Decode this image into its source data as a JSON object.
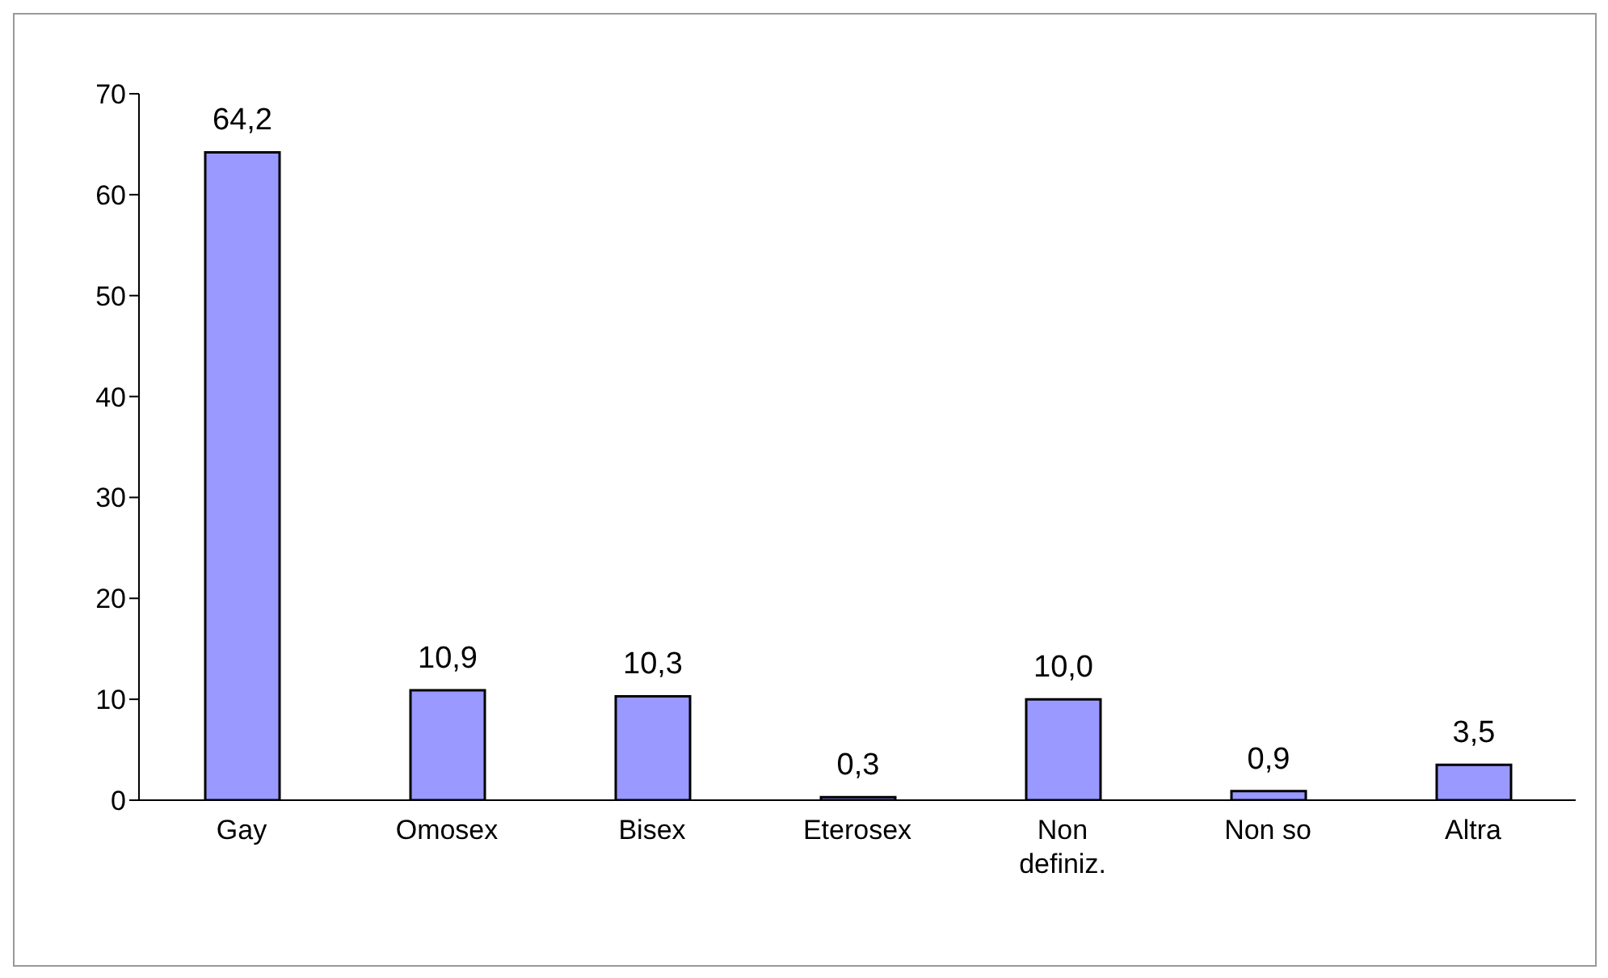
{
  "chart_data": {
    "type": "bar",
    "categories": [
      "Gay",
      "Omosex",
      "Bisex",
      "Eterosex",
      "Non definiz.",
      "Non so",
      "Altra"
    ],
    "values": [
      64.2,
      10.9,
      10.3,
      0.3,
      10.0,
      0.9,
      3.5
    ],
    "value_labels": [
      "64,2",
      "10,9",
      "10,3",
      "0,3",
      "10,0",
      "0,9",
      "3,5"
    ],
    "color": "#9999ff",
    "ylim": [
      0,
      70
    ],
    "yticks": [
      0,
      10,
      20,
      30,
      40,
      50,
      60,
      70
    ],
    "grid": false,
    "legend": false
  }
}
